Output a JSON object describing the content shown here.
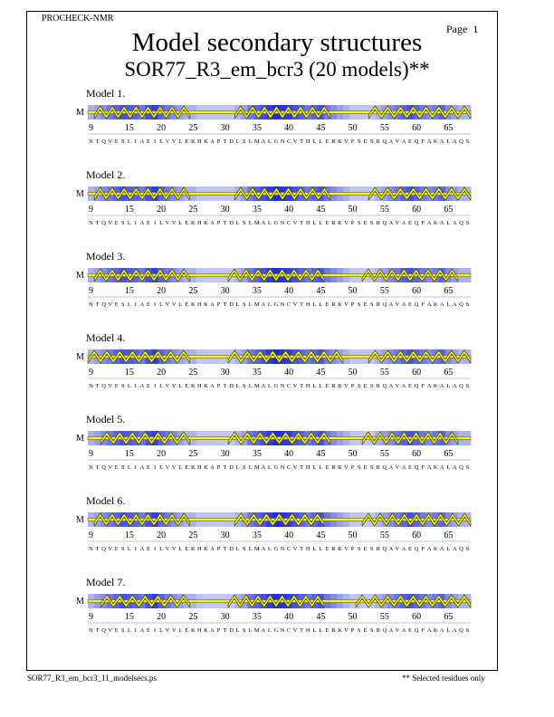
{
  "header": {
    "program": "PROCHECK-NMR",
    "page": "Page  1",
    "title": "Model secondary structures",
    "subtitle": "SOR77_R3_em_bcr3 (20 models)**"
  },
  "footer": {
    "filename": "SOR77_R3_em_bcr3_11_modelsecs.ps",
    "note": "** Selected residues only"
  },
  "sequence": {
    "start": 9,
    "end": 68,
    "letters": "NTQVESLIAEILVVLEKHKAPTDLSLMALGNCVTHLLERKVPSESRQAVAEQFAKALAQS",
    "tick_values": [
      9,
      15,
      20,
      25,
      30,
      35,
      40,
      45,
      50,
      55,
      60,
      65
    ]
  },
  "marker_letter": "M",
  "colors": {
    "helix": "#f5f51f",
    "helix_stroke": "#4a4a00",
    "shade_dark": "#1f2bd6",
    "shade_light": "#e9ecfb"
  },
  "models": [
    {
      "label": "Model  1.",
      "helices": [
        [
          10,
          24
        ],
        [
          32,
          46
        ],
        [
          53,
          68
        ]
      ],
      "shading": [
        0.3,
        0.4,
        0.5,
        0.6,
        0.7,
        0.8,
        0.75,
        0.7,
        0.6,
        0.8,
        0.9,
        0.7,
        0.6,
        0.5,
        0.4,
        0.3,
        0.3,
        0.2,
        0.2,
        0.2,
        0.2,
        0.2,
        0.2,
        0.3,
        0.4,
        0.6,
        0.7,
        0.8,
        0.9,
        1.0,
        0.95,
        0.9,
        0.8,
        0.7,
        0.6,
        0.7,
        0.8,
        0.6,
        0.5,
        0.4,
        0.3,
        0.2,
        0.2,
        0.2,
        0.2,
        0.3,
        0.4,
        0.5,
        0.6,
        0.7,
        0.8,
        0.7,
        0.6,
        0.5,
        0.6,
        0.7,
        0.5,
        0.4,
        0.3,
        0.3
      ]
    },
    {
      "label": "Model  2.",
      "helices": [
        [
          10,
          24
        ],
        [
          32,
          46
        ],
        [
          53,
          68
        ]
      ],
      "shading": [
        0.3,
        0.4,
        0.5,
        0.6,
        0.7,
        0.8,
        0.75,
        0.7,
        0.6,
        0.8,
        0.9,
        0.7,
        0.6,
        0.5,
        0.4,
        0.3,
        0.3,
        0.2,
        0.2,
        0.2,
        0.2,
        0.2,
        0.2,
        0.3,
        0.4,
        0.6,
        0.7,
        0.8,
        0.9,
        1.0,
        0.95,
        0.9,
        0.8,
        0.7,
        0.6,
        0.7,
        0.8,
        0.6,
        0.5,
        0.4,
        0.3,
        0.2,
        0.2,
        0.2,
        0.2,
        0.3,
        0.4,
        0.5,
        0.6,
        0.7,
        0.8,
        0.7,
        0.6,
        0.5,
        0.6,
        0.7,
        0.5,
        0.4,
        0.3,
        0.3
      ]
    },
    {
      "label": "Model  3.",
      "helices": [
        [
          10,
          24
        ],
        [
          31,
          45
        ],
        [
          52,
          66
        ]
      ],
      "shading": [
        0.3,
        0.4,
        0.5,
        0.6,
        0.7,
        0.8,
        0.75,
        0.7,
        0.6,
        0.8,
        0.9,
        0.7,
        0.6,
        0.5,
        0.4,
        0.3,
        0.3,
        0.2,
        0.2,
        0.2,
        0.2,
        0.2,
        0.2,
        0.3,
        0.4,
        0.6,
        0.7,
        0.8,
        0.9,
        1.0,
        0.95,
        0.9,
        0.8,
        0.7,
        0.6,
        0.7,
        0.8,
        0.6,
        0.5,
        0.4,
        0.3,
        0.2,
        0.2,
        0.2,
        0.2,
        0.3,
        0.4,
        0.5,
        0.6,
        0.7,
        0.8,
        0.7,
        0.6,
        0.5,
        0.6,
        0.7,
        0.5,
        0.4,
        0.3,
        0.3
      ]
    },
    {
      "label": "Model  4.",
      "helices": [
        [
          9,
          24
        ],
        [
          31,
          48
        ],
        [
          53,
          68
        ]
      ],
      "shading": [
        0.3,
        0.4,
        0.5,
        0.6,
        0.7,
        0.8,
        0.75,
        0.7,
        0.6,
        0.8,
        0.9,
        0.7,
        0.6,
        0.5,
        0.4,
        0.3,
        0.3,
        0.2,
        0.2,
        0.2,
        0.2,
        0.2,
        0.2,
        0.3,
        0.4,
        0.6,
        0.7,
        0.8,
        0.9,
        1.0,
        0.95,
        0.9,
        0.8,
        0.7,
        0.6,
        0.7,
        0.8,
        0.6,
        0.5,
        0.4,
        0.3,
        0.2,
        0.2,
        0.2,
        0.2,
        0.3,
        0.4,
        0.5,
        0.6,
        0.7,
        0.8,
        0.7,
        0.6,
        0.5,
        0.6,
        0.7,
        0.5,
        0.4,
        0.3,
        0.3
      ]
    },
    {
      "label": "Model  5.",
      "helices": [
        [
          11,
          24
        ],
        [
          31,
          46
        ],
        [
          52,
          66
        ]
      ],
      "shading": [
        0.3,
        0.4,
        0.5,
        0.6,
        0.7,
        0.8,
        0.75,
        0.7,
        0.6,
        0.8,
        0.9,
        0.7,
        0.6,
        0.5,
        0.4,
        0.3,
        0.3,
        0.2,
        0.2,
        0.2,
        0.2,
        0.2,
        0.2,
        0.3,
        0.4,
        0.6,
        0.7,
        0.8,
        0.9,
        1.0,
        0.95,
        0.9,
        0.8,
        0.7,
        0.6,
        0.7,
        0.8,
        0.6,
        0.5,
        0.4,
        0.3,
        0.2,
        0.2,
        0.2,
        0.2,
        0.3,
        0.4,
        0.5,
        0.6,
        0.7,
        0.8,
        0.7,
        0.6,
        0.5,
        0.6,
        0.7,
        0.5,
        0.4,
        0.3,
        0.3
      ]
    },
    {
      "label": "Model  6.",
      "helices": [
        [
          10,
          24
        ],
        [
          32,
          45
        ],
        [
          52,
          68
        ]
      ],
      "shading": [
        0.3,
        0.4,
        0.5,
        0.6,
        0.7,
        0.8,
        0.75,
        0.7,
        0.6,
        0.8,
        0.9,
        0.7,
        0.6,
        0.5,
        0.4,
        0.3,
        0.3,
        0.2,
        0.2,
        0.2,
        0.2,
        0.2,
        0.2,
        0.3,
        0.4,
        0.6,
        0.7,
        0.8,
        0.9,
        1.0,
        0.95,
        0.9,
        0.8,
        0.7,
        0.6,
        0.7,
        0.8,
        0.6,
        0.5,
        0.4,
        0.3,
        0.2,
        0.2,
        0.2,
        0.2,
        0.3,
        0.4,
        0.5,
        0.6,
        0.7,
        0.8,
        0.7,
        0.6,
        0.5,
        0.6,
        0.7,
        0.5,
        0.4,
        0.3,
        0.3
      ]
    },
    {
      "label": "Model  7.",
      "helices": [
        [
          11,
          24
        ],
        [
          31,
          45
        ],
        [
          51,
          68
        ]
      ],
      "shading": [
        0.3,
        0.4,
        0.5,
        0.6,
        0.7,
        0.8,
        0.75,
        0.7,
        0.6,
        0.8,
        0.9,
        0.7,
        0.6,
        0.5,
        0.4,
        0.3,
        0.3,
        0.2,
        0.2,
        0.2,
        0.2,
        0.2,
        0.2,
        0.3,
        0.4,
        0.6,
        0.7,
        0.8,
        0.9,
        1.0,
        0.95,
        0.9,
        0.8,
        0.7,
        0.6,
        0.7,
        0.8,
        0.6,
        0.5,
        0.4,
        0.3,
        0.2,
        0.2,
        0.2,
        0.2,
        0.3,
        0.4,
        0.5,
        0.6,
        0.7,
        0.8,
        0.7,
        0.6,
        0.5,
        0.6,
        0.7,
        0.5,
        0.4,
        0.3,
        0.3
      ]
    }
  ]
}
